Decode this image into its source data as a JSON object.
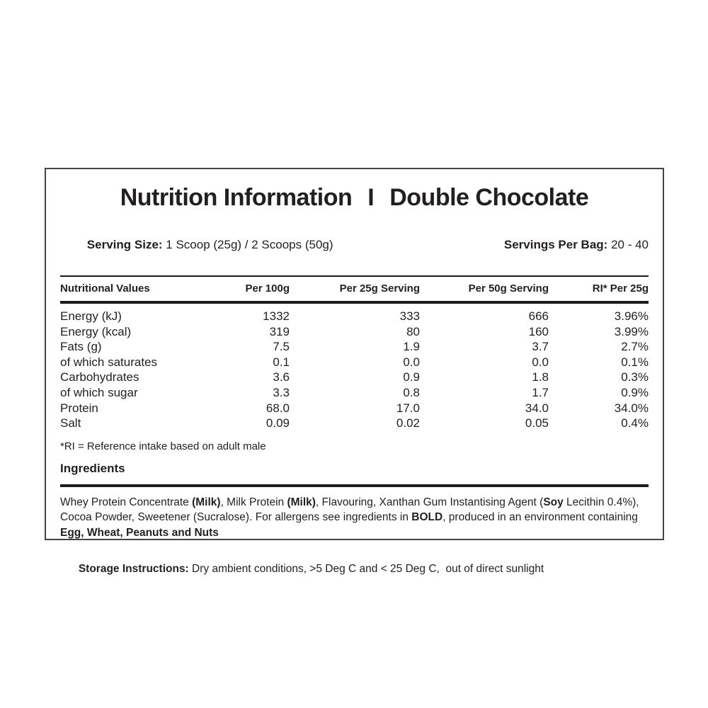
{
  "title": {
    "left": "Nutrition Information",
    "separator": "I",
    "right": "Double Chocolate"
  },
  "serving": {
    "size_label": "Serving Size:",
    "size_value": " 1 Scoop (25g) / 2 Scoops (50g)",
    "per_bag_label": "Servings Per Bag:",
    "per_bag_value": " 20 - 40"
  },
  "table": {
    "headers": [
      "Nutritional Values",
      "Per 100g",
      "Per 25g Serving",
      "Per 50g Serving",
      "RI* Per 25g"
    ],
    "rows": [
      {
        "label": "Energy (kJ)",
        "per100g": "1332",
        "per25g": "333",
        "per50g": "666",
        "ri": "3.96%"
      },
      {
        "label": "Energy (kcal)",
        "per100g": "319",
        "per25g": "80",
        "per50g": "160",
        "ri": "3.99%"
      },
      {
        "label": "Fats (g)",
        "per100g": "7.5",
        "per25g": "1.9",
        "per50g": "3.7",
        "ri": "2.7%"
      },
      {
        "label": "of which saturates",
        "per100g": "0.1",
        "per25g": "0.0",
        "per50g": "0.0",
        "ri": "0.1%"
      },
      {
        "label": "Carbohydrates",
        "per100g": "3.6",
        "per25g": "0.9",
        "per50g": "1.8",
        "ri": "0.3%"
      },
      {
        "label": "of which sugar",
        "per100g": "3.3",
        "per25g": "0.8",
        "per50g": "1.7",
        "ri": "0.9%"
      },
      {
        "label": "Protein",
        "per100g": "68.0",
        "per25g": "17.0",
        "per50g": "34.0",
        "ri": "34.0%"
      },
      {
        "label": "Salt",
        "per100g": "0.09",
        "per25g": "0.02",
        "per50g": "0.05",
        "ri": "0.4%"
      }
    ],
    "footnote": "*RI = Reference intake based on adult male"
  },
  "ingredients": {
    "heading": "Ingredients",
    "segments": [
      {
        "text": "Whey Protein Concentrate ",
        "bold": false
      },
      {
        "text": "(Milk)",
        "bold": true
      },
      {
        "text": ", Milk Protein ",
        "bold": false
      },
      {
        "text": "(Milk)",
        "bold": true
      },
      {
        "text": ", Flavouring, Xanthan Gum Instantising Agent (",
        "bold": false
      },
      {
        "text": "Soy",
        "bold": true
      },
      {
        "text": " Lecithin 0.4%), Cocoa Powder, Sweetener (Sucralose). For allergens see ingredients in ",
        "bold": false
      },
      {
        "text": "BOLD",
        "bold": true
      },
      {
        "text": ", produced in an environment containing ",
        "bold": false
      },
      {
        "text": "Egg, Wheat, Peanuts and Nuts",
        "bold": true
      }
    ]
  },
  "storage": {
    "label": "Storage Instructions:",
    "value": " Dry ambient conditions, >5 Deg C and < 25 Deg C,  out of direct sunlight"
  },
  "colors": {
    "text": "#231f20",
    "border": "#454344",
    "background": "#ffffff"
  }
}
